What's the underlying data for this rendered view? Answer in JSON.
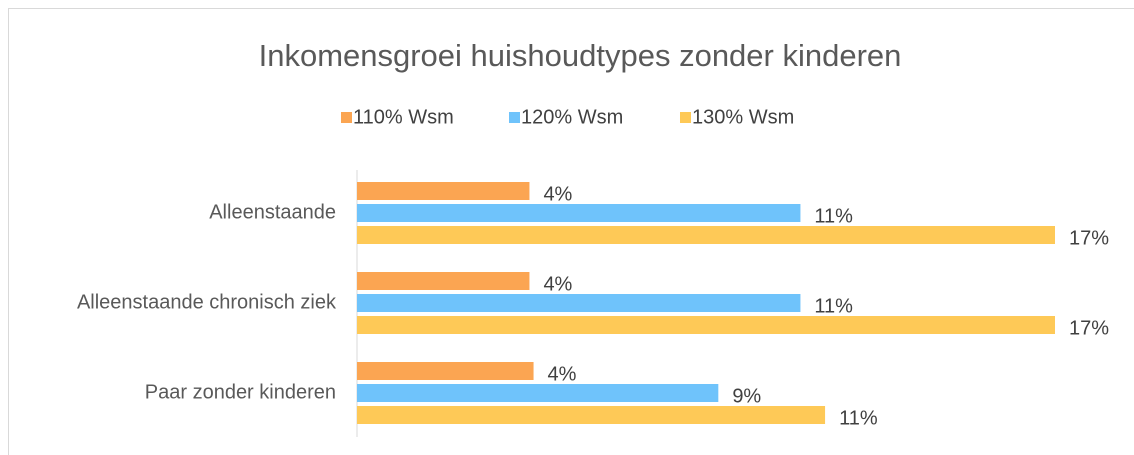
{
  "chart_data": {
    "type": "bar",
    "orientation": "horizontal",
    "title": "Inkomensgroei huishoudtypes zonder kinderen",
    "categories": [
      "Alleenstaande",
      "Alleenstaande chronisch ziek",
      "Paar zonder kinderen"
    ],
    "series": [
      {
        "name": "110% Wsm",
        "color": "#fba552",
        "values": [
          4.2,
          4.2,
          4.3
        ],
        "value_labels": [
          "4%",
          "4%",
          "4%"
        ]
      },
      {
        "name": "120% Wsm",
        "color": "#6fc3fb",
        "values": [
          10.8,
          10.8,
          8.8
        ],
        "value_labels": [
          "11%",
          "11%",
          "9%"
        ]
      },
      {
        "name": "130% Wsm",
        "color": "#fec957",
        "values": [
          17,
          17,
          11.4
        ],
        "value_labels": [
          "17%",
          "17%",
          "11%"
        ]
      }
    ],
    "legend": "top"
  }
}
